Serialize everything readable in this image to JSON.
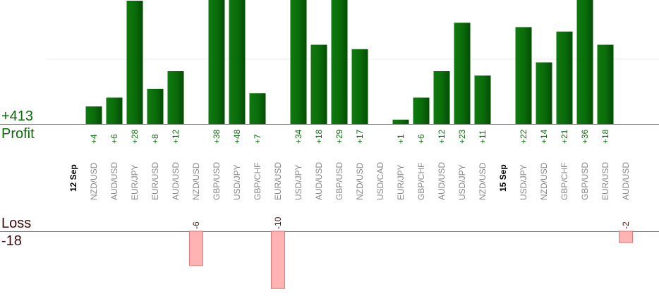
{
  "summary": {
    "profit_total": "+413",
    "profit_label": "Profit",
    "loss_label": "Loss",
    "loss_total": "-18"
  },
  "colors": {
    "profit_bar": "#0a6b0a",
    "profit_text": "#0a6b0a",
    "loss_bar": "#ffb3b3",
    "loss_border": "#e07a7a",
    "axis": "#888888",
    "pair_text": "#888888",
    "date_text": "#000000"
  },
  "chart_data": {
    "type": "bar",
    "ylim_profit": [
      0,
      30
    ],
    "ylim_loss": [
      -15,
      0
    ],
    "groups": [
      {
        "date": "12 Sep",
        "pairs": [
          "NZD/USD",
          "AUD/USD",
          "EUR/JPY",
          "EUR/USD",
          "AUD/USD",
          "NZD/USD",
          "GBP/USD",
          "USD/JPY",
          "GBP/CHF",
          "EUR/USD",
          "USD/JPY",
          "AUD/USD",
          "GBP/USD",
          "NZD/USD",
          "USD/CAD",
          "EUR/JPY",
          "GBP/CHF",
          "AUD/USD",
          "USD/JPY",
          "NZD/USD"
        ]
      },
      {
        "date": "15 Sep",
        "pairs": [
          "USD/JPY",
          "NZD/USD",
          "GBP/CHF",
          "GBP/USD",
          "EUR/USD",
          "AUD/USD"
        ]
      }
    ],
    "series": [
      {
        "values": [
          4,
          6,
          28,
          8,
          12,
          -6,
          38,
          48,
          7,
          -10,
          34,
          18,
          29,
          17,
          null,
          1,
          6,
          12,
          23,
          11,
          22,
          14,
          21,
          36,
          18,
          -2
        ],
        "labels": [
          "+4",
          "+6",
          "+28",
          "+8",
          "+12",
          "-6",
          "+38",
          "+48",
          "+7",
          "-10",
          "+34",
          "+18",
          "+29",
          "+17",
          "",
          "+1",
          "+6",
          "+12",
          "+23",
          "+11",
          "+22",
          "+14",
          "+21",
          "+36",
          "+18",
          "-2"
        ]
      }
    ]
  }
}
